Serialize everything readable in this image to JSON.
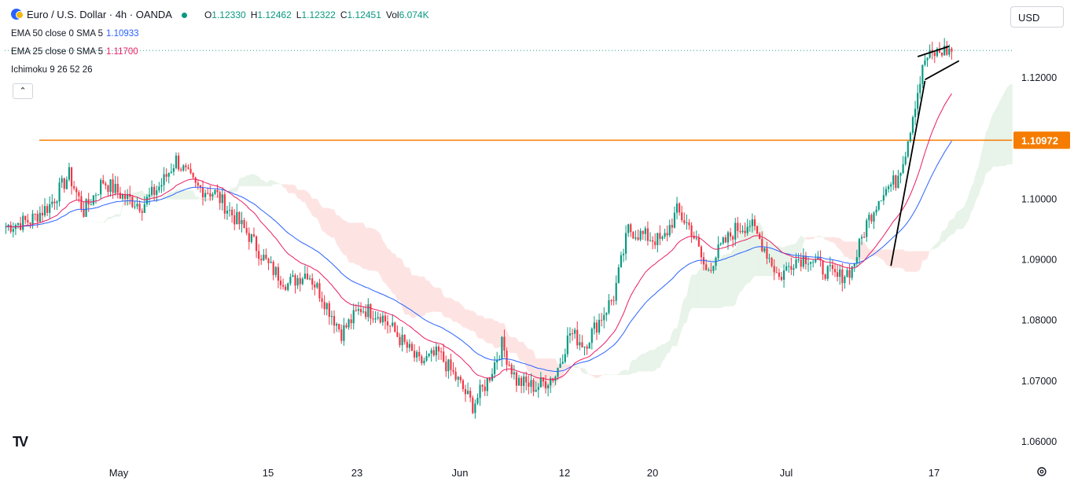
{
  "header": {
    "title": "Euro / U.S. Dollar · 4h · OANDA",
    "ohlc": [
      {
        "key": "O",
        "value": "1.12330"
      },
      {
        "key": "H",
        "value": "1.12462"
      },
      {
        "key": "L",
        "value": "1.12322"
      },
      {
        "key": "C",
        "value": "1.12451"
      },
      {
        "key": "Vol",
        "value": "6.074K"
      }
    ]
  },
  "indicators": {
    "ema50": {
      "label": "EMA 50 close 0 SMA 5",
      "value": "1.10933",
      "color": "#2962ff"
    },
    "ema25": {
      "label": "EMA 25 close 0 SMA 5",
      "value": "1.11700",
      "color": "#e91e63"
    },
    "ichimoku": {
      "label": "Ichimoku 9 26 52 26"
    }
  },
  "toolbar": {
    "collapse_icon": "chevron-up-icon",
    "currency": "USD",
    "logo": "TV"
  },
  "colors": {
    "up": "#089981",
    "down": "#f23645",
    "horizontal_line": "#f57c00",
    "price_tag": "#f57c00"
  },
  "chart_data": {
    "type": "candlestick",
    "symbol": "EUR/USD",
    "interval": "4h",
    "ylim": [
      1.056,
      1.13
    ],
    "y_ticks": [
      "1.12000",
      "1.10000",
      "1.09000",
      "1.08000",
      "1.07000",
      "1.06000"
    ],
    "x_ticks": [
      "May",
      "15",
      "23",
      "Jun",
      "12",
      "20",
      "Jul",
      "17"
    ],
    "horizontal_level": {
      "value": 1.10972,
      "label": "1.10972"
    },
    "last_price": 1.12451,
    "close_path_anchors": [
      [
        0,
        1.0955
      ],
      [
        10,
        1.0965
      ],
      [
        18,
        1.099
      ],
      [
        26,
        1.104
      ],
      [
        32,
        1.098
      ],
      [
        40,
        1.103
      ],
      [
        48,
        1.1005
      ],
      [
        56,
        1.099
      ],
      [
        64,
        1.1025
      ],
      [
        70,
        1.1065
      ],
      [
        78,
        1.102
      ],
      [
        86,
        1.101
      ],
      [
        92,
        1.098
      ],
      [
        100,
        1.094
      ],
      [
        108,
        1.089
      ],
      [
        116,
        1.086
      ],
      [
        124,
        1.088
      ],
      [
        130,
        1.084
      ],
      [
        138,
        1.078
      ],
      [
        146,
        1.082
      ],
      [
        154,
        1.081
      ],
      [
        162,
        1.077
      ],
      [
        170,
        1.073
      ],
      [
        178,
        1.0745
      ],
      [
        186,
        1.07
      ],
      [
        192,
        1.066
      ],
      [
        198,
        1.07
      ],
      [
        204,
        1.076
      ],
      [
        210,
        1.07
      ],
      [
        218,
        1.069
      ],
      [
        226,
        1.071
      ],
      [
        232,
        1.078
      ],
      [
        238,
        1.076
      ],
      [
        244,
        1.08
      ],
      [
        250,
        1.084
      ],
      [
        256,
        1.095
      ],
      [
        262,
        1.094
      ],
      [
        270,
        1.093
      ],
      [
        276,
        1.098
      ],
      [
        282,
        1.095
      ],
      [
        288,
        1.088
      ],
      [
        294,
        1.092
      ],
      [
        300,
        1.095
      ],
      [
        306,
        1.096
      ],
      [
        312,
        1.092
      ],
      [
        318,
        1.087
      ],
      [
        324,
        1.09
      ],
      [
        330,
        1.0905
      ],
      [
        336,
        1.0885
      ],
      [
        342,
        1.087
      ],
      [
        348,
        1.0885
      ],
      [
        354,
        1.096
      ],
      [
        360,
        1.101
      ],
      [
        366,
        1.103
      ],
      [
        370,
        1.108
      ],
      [
        374,
        1.116
      ],
      [
        378,
        1.123
      ],
      [
        382,
        1.124
      ],
      [
        386,
        1.1245
      ]
    ],
    "ema_lines": [
      "EMA 50",
      "EMA 25"
    ],
    "ichimoku_cloud": true,
    "annotations": [
      "rising trendline",
      "rising wedge"
    ]
  }
}
